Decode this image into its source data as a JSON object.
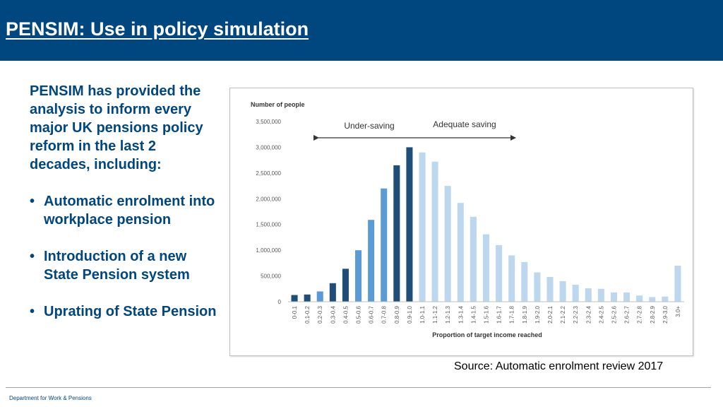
{
  "header": {
    "title": "PENSIM: Use in policy simulation"
  },
  "left_panel": {
    "intro": "PENSIM has provided the analysis to inform every major UK pensions policy reform in the last 2 decades, including:",
    "bullets": [
      "Automatic enrolment into workplace pension",
      "Introduction of a new State Pension system",
      "Uprating of State Pension"
    ]
  },
  "source": "Source: Automatic enrolment review 2017",
  "footer": "Department for Work & Pensions",
  "colors": {
    "header_bg": "#00467f",
    "bar_dark": "#1f4e79",
    "bar_medium": "#5b9bd5",
    "bar_light": "#bdd7ee"
  },
  "chart_data": {
    "type": "bar",
    "ylabel": "Number of people",
    "xlabel": "Proportion of target income reached",
    "ylim": [
      0,
      3500000
    ],
    "yticks": [
      "0",
      "500,000",
      "1,000,000",
      "1,500,000",
      "2,000,000",
      "2,500,000",
      "3,000,000",
      "3,500,000"
    ],
    "grid": false,
    "annotations": {
      "left": "Under-saving",
      "right": "Adequate saving"
    },
    "categories": [
      "0-0.1",
      "0.1-0.2",
      "0.2-0.3",
      "0.3-0.4",
      "0.4-0.5",
      "0.5-0.6",
      "0.6-0.7",
      "0.7-0.8",
      "0.8-0.9",
      "0.9-1.0",
      "1.0-1.1",
      "1.1-1.2",
      "1.2-1.3",
      "1.3-1.4",
      "1.4-1.5",
      "1.5-1.6",
      "1.6-1.7",
      "1.7-1.8",
      "1.8-1.9",
      "1.9-2.0",
      "2.0-2.1",
      "2.1-2.2",
      "2.2-2.3",
      "2.3-2.4",
      "2.4-2.5",
      "2.5-2.6",
      "2.6-2.7",
      "2.7-2.8",
      "2.8-2.9",
      "2.9-3.0",
      "3.0+"
    ],
    "values": [
      130000,
      140000,
      200000,
      360000,
      640000,
      1000000,
      1590000,
      2200000,
      2650000,
      3000000,
      2900000,
      2720000,
      2250000,
      1920000,
      1650000,
      1310000,
      1100000,
      900000,
      770000,
      570000,
      480000,
      400000,
      330000,
      260000,
      250000,
      180000,
      180000,
      120000,
      90000,
      100000,
      700000
    ],
    "bar_shade": [
      "dark",
      "dark",
      "medium",
      "dark",
      "dark",
      "medium",
      "medium",
      "medium",
      "dark",
      "dark",
      "light",
      "light",
      "light",
      "light",
      "light",
      "light",
      "light",
      "light",
      "light",
      "light",
      "light",
      "light",
      "light",
      "light",
      "light",
      "light",
      "light",
      "light",
      "light",
      "light",
      "light"
    ]
  }
}
